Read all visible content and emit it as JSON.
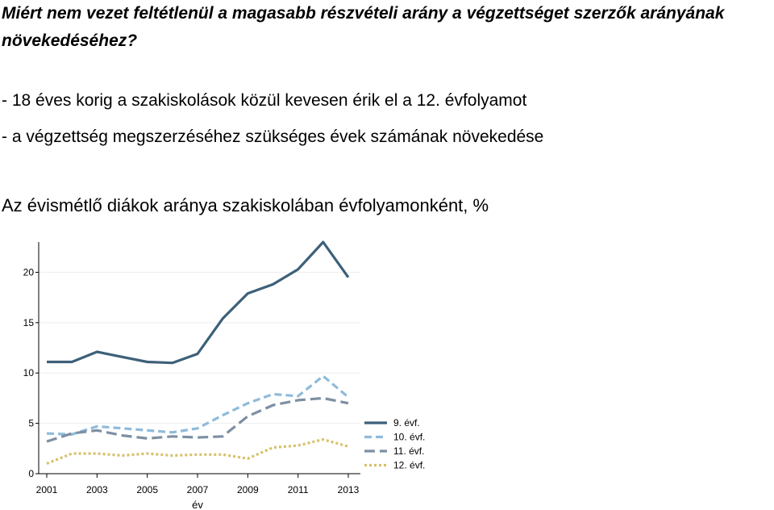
{
  "header": {
    "title": "Miért nem vezet feltétlenül a magasabb részvételi arány a végzettséget szerzők arányának növekedéséhez?",
    "bullets": [
      "- 18 éves korig a szakiskolások közül kevesen érik el a 12. évfolyamot",
      "- a végzettség megszerzéséhez szükséges évek számának növekedése"
    ]
  },
  "chart_data": {
    "type": "line",
    "title": "Az évismétlő diákok aránya szakiskolában évfolyamonként, %",
    "xlabel": "év",
    "ylabel": "",
    "x": [
      2001,
      2002,
      2003,
      2004,
      2005,
      2006,
      2007,
      2008,
      2009,
      2010,
      2011,
      2012,
      2013
    ],
    "xticks": [
      "2001",
      "2003",
      "2005",
      "2007",
      "2009",
      "2011",
      "2013"
    ],
    "yticks": [
      "0",
      "5",
      "10",
      "15",
      "20"
    ],
    "ylim": [
      0,
      23
    ],
    "grid": true,
    "legend_position": "right",
    "series": [
      {
        "name": "9. évf.",
        "color": "#3d6079",
        "dash": "solid",
        "values": [
          11.1,
          11.1,
          12.1,
          11.6,
          11.1,
          11.0,
          11.9,
          15.4,
          17.9,
          18.8,
          20.3,
          23.0,
          19.5
        ]
      },
      {
        "name": "10. évf.",
        "color": "#8fbbdb",
        "dash": "dashed",
        "values": [
          4.0,
          3.9,
          4.7,
          4.5,
          4.3,
          4.1,
          4.5,
          5.8,
          7.0,
          7.9,
          7.7,
          9.7,
          7.6
        ]
      },
      {
        "name": "11. évf.",
        "color": "#7d8fa3",
        "dash": "longdash",
        "values": [
          3.2,
          4.0,
          4.3,
          3.8,
          3.5,
          3.7,
          3.6,
          3.7,
          5.7,
          6.8,
          7.3,
          7.5,
          7.0
        ]
      },
      {
        "name": "12. évf.",
        "color": "#d6c06c",
        "dash": "dotted",
        "values": [
          1.0,
          2.0,
          2.0,
          1.8,
          2.0,
          1.8,
          1.9,
          1.9,
          1.5,
          2.6,
          2.8,
          3.4,
          2.7
        ]
      }
    ]
  }
}
